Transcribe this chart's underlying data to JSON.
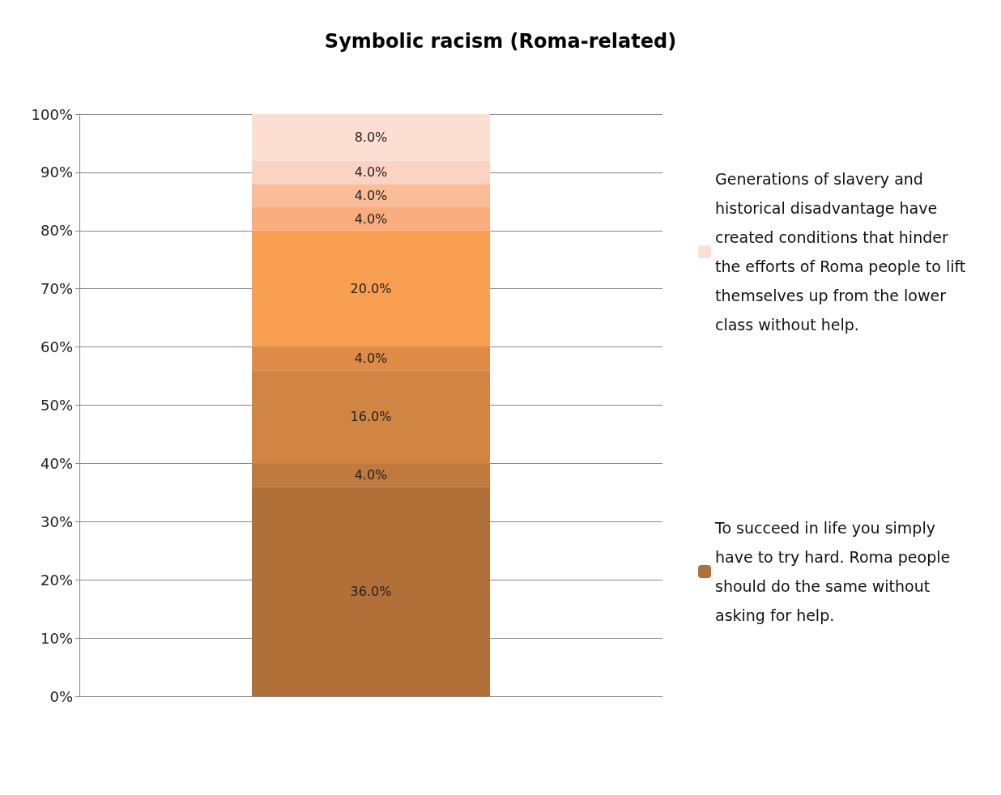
{
  "chart_data": {
    "type": "bar",
    "title": "Symbolic racism (Roma-related)",
    "stacked": true,
    "categories": [
      null
    ],
    "ylim": [
      0,
      100
    ],
    "yticks": [
      {
        "value": 0,
        "label": "0%"
      },
      {
        "value": 10,
        "label": "10%"
      },
      {
        "value": 20,
        "label": "20%"
      },
      {
        "value": 30,
        "label": "30%"
      },
      {
        "value": 40,
        "label": "40%"
      },
      {
        "value": 50,
        "label": "50%"
      },
      {
        "value": 60,
        "label": "60%"
      },
      {
        "value": 70,
        "label": "70%"
      },
      {
        "value": 80,
        "label": "80%"
      },
      {
        "value": 90,
        "label": "90%"
      },
      {
        "value": 100,
        "label": "100%"
      }
    ],
    "grid": "y",
    "legend": "right",
    "series": [
      {
        "name": "To succeed in life you simply have to try hard. Roma people should do the same without asking for help.",
        "color": "#b07038",
        "values": [
          36
        ],
        "value_labels": [
          "36.0%"
        ]
      },
      {
        "color": "#c07a3e",
        "values": [
          4
        ],
        "value_labels": [
          "4.0%"
        ]
      },
      {
        "color": "#d08542",
        "values": [
          16
        ],
        "value_labels": [
          "16.0%"
        ]
      },
      {
        "color": "#e08c48",
        "values": [
          4
        ],
        "value_labels": [
          "4.0%"
        ]
      },
      {
        "color": "#f89f52",
        "values": [
          20
        ],
        "value_labels": [
          "20.0%"
        ]
      },
      {
        "color": "#f9ad7e",
        "values": [
          4
        ],
        "value_labels": [
          "4.0%"
        ]
      },
      {
        "color": "#fbbc9a",
        "values": [
          4
        ],
        "value_labels": [
          "4.0%"
        ]
      },
      {
        "color": "#fad3c2",
        "values": [
          4
        ],
        "value_labels": [
          "4.0%"
        ]
      },
      {
        "name": "Generations of slavery and historical disadvantage have created conditions that hinder the efforts of Roma people to lift themselves up from the lower class without help.",
        "color": "#fcdfd2",
        "values": [
          8
        ],
        "value_labels": [
          "8.0%"
        ]
      }
    ]
  }
}
